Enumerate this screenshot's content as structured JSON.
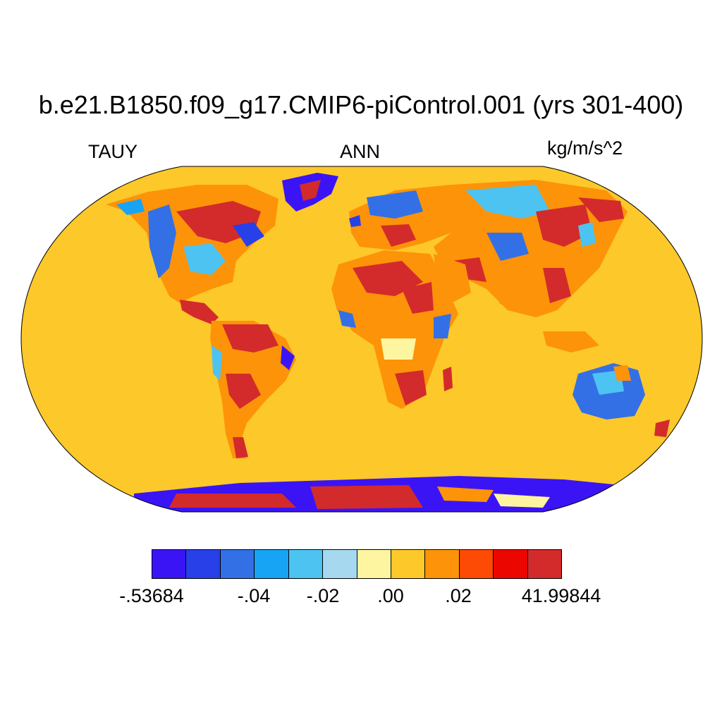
{
  "title": "b.e21.B1850.f09_g17.CMIP6-piControl.001 (yrs 301-400)",
  "variable": "TAUY",
  "season": "ANN",
  "units": "kg/m/s^2",
  "ocean_color": "#FDC82A",
  "colorbar": {
    "colors": [
      "#3B14F5",
      "#2740E8",
      "#3370E6",
      "#18A4F5",
      "#4DC3F2",
      "#A6D9EF",
      "#FEF5A0",
      "#FDC82A",
      "#FD9309",
      "#FD4A05",
      "#EC0600",
      "#D32B2B"
    ],
    "labels": [
      {
        "text": "-.53684"
      },
      {
        "text": "-.04"
      },
      {
        "text": "-.02"
      },
      {
        "text": ".00"
      },
      {
        "text": ".02"
      },
      {
        "text": "41.99844"
      }
    ]
  }
}
